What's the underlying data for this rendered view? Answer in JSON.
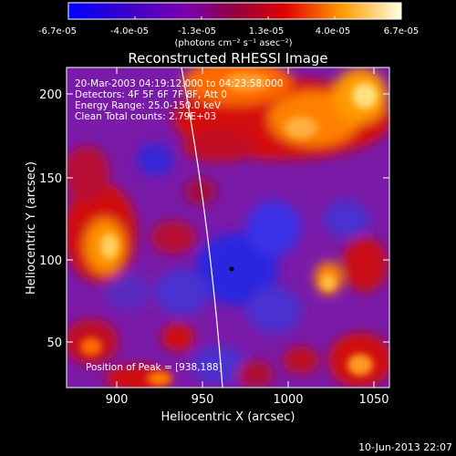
{
  "colorbar": {
    "tick_labels": [
      "-6.7e-05",
      "-4.0e-05",
      "-1.3e-05",
      "1.3e-05",
      "4.0e-05",
      "6.7e-05"
    ],
    "units": "(photons cm⁻² s⁻¹ asec⁻²)"
  },
  "title": "Reconstructed RHESSI Image",
  "annotations": {
    "time_range": "20-Mar-2003 04:19:12.000 to 04:23:58.000",
    "detectors": "Detectors: 4F 5F 6F 7F 8F, Att 0",
    "energy_range": "Energy Range: 25.0-150.0 keV",
    "method": "Clean    Total counts: 2.79E+03",
    "peak": "Position of Peak = [938,188]"
  },
  "axes": {
    "xlabel": "Heliocentric X (arcsec)",
    "ylabel": "Heliocentric Y (arcsec)",
    "xticks": [
      "900",
      "950",
      "1000",
      "1050"
    ],
    "yticks": [
      "50",
      "100",
      "150",
      "200"
    ]
  },
  "footer": {
    "timestamp": "10-Jun-2013 22:07"
  },
  "colors": {
    "plot_bg": "#7a1aa8",
    "background": "#000000"
  }
}
